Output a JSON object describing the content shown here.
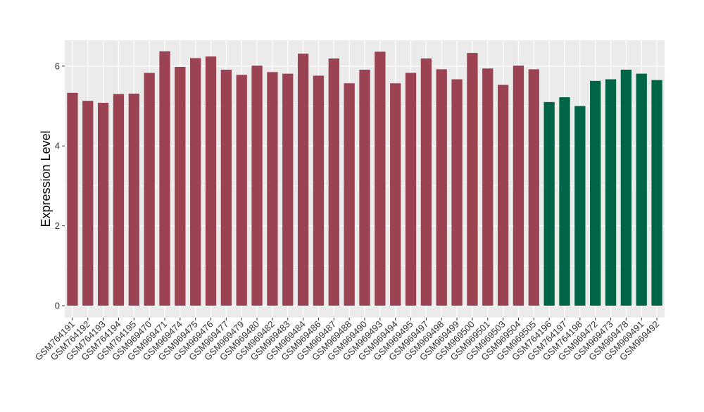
{
  "chart_data": {
    "type": "bar",
    "title": "",
    "xlabel": "",
    "ylabel": "Expression Level",
    "ylim": [
      -0.3,
      6.65
    ],
    "y_ticks": [
      0,
      2,
      4,
      6
    ],
    "grid": true,
    "legend": "none",
    "categories": [
      "GSM764191",
      "GSM764192",
      "GSM764193",
      "GSM764194",
      "GSM764195",
      "GSM969470",
      "GSM969471",
      "GSM969474",
      "GSM969475",
      "GSM969476",
      "GSM969477",
      "GSM969479",
      "GSM969480",
      "GSM969482",
      "GSM969483",
      "GSM969484",
      "GSM969486",
      "GSM969487",
      "GSM969488",
      "GSM969490",
      "GSM969493",
      "GSM969494",
      "GSM969495",
      "GSM969497",
      "GSM969498",
      "GSM969499",
      "GSM969500",
      "GSM969501",
      "GSM969503",
      "GSM969504",
      "GSM969505",
      "GSM764196",
      "GSM764197",
      "GSM764198",
      "GSM969472",
      "GSM969473",
      "GSM969478",
      "GSM969491",
      "GSM969492"
    ],
    "values": [
      5.33,
      5.13,
      5.08,
      5.3,
      5.31,
      5.83,
      6.37,
      5.98,
      6.2,
      6.24,
      5.91,
      5.78,
      6.01,
      5.85,
      5.81,
      6.31,
      5.76,
      6.19,
      5.57,
      5.91,
      6.36,
      5.57,
      5.83,
      6.19,
      5.92,
      5.67,
      6.33,
      5.94,
      5.53,
      6.01,
      5.92,
      5.1,
      5.22,
      5.0,
      5.63,
      5.67,
      5.91,
      5.81,
      5.65
    ],
    "groups": [
      0,
      0,
      0,
      0,
      0,
      0,
      0,
      0,
      0,
      0,
      0,
      0,
      0,
      0,
      0,
      0,
      0,
      0,
      0,
      0,
      0,
      0,
      0,
      0,
      0,
      0,
      0,
      0,
      0,
      0,
      0,
      1,
      1,
      1,
      1,
      1,
      1,
      1,
      1
    ],
    "colors": {
      "group_0": "#9b4352",
      "group_1": "#006446",
      "panel_bg": "#ebebeb",
      "grid": "#ffffff",
      "axis_text": "#333333",
      "axis_title": "#000000"
    }
  }
}
